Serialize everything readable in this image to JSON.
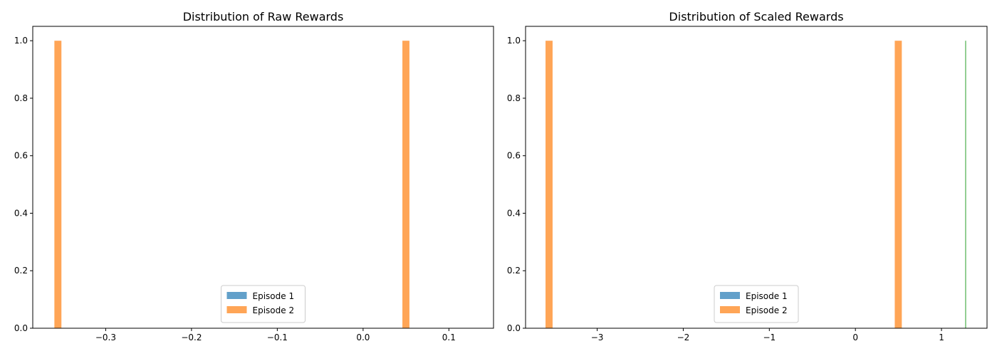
{
  "chart_data": [
    {
      "type": "bar",
      "title": "Distribution of Raw Rewards",
      "xlabel": "",
      "ylabel": "",
      "xlim": [
        -0.385,
        0.152
      ],
      "ylim": [
        0,
        1.05
      ],
      "xticks": [
        -0.3,
        -0.2,
        -0.1,
        0.0,
        0.1
      ],
      "xtick_labels": [
        "−0.3",
        "−0.2",
        "−0.1",
        "0.0",
        "0.1"
      ],
      "yticks": [
        0.0,
        0.2,
        0.4,
        0.6,
        0.8,
        1.0
      ],
      "ytick_labels": [
        "0.0",
        "0.2",
        "0.4",
        "0.6",
        "0.8",
        "1.0"
      ],
      "grid": false,
      "legend_position": "lower center",
      "series": [
        {
          "name": "Episode 1",
          "color": "#1f77b4",
          "alpha": 0.7,
          "bars": []
        },
        {
          "name": "Episode 2",
          "color": "#ff7f0e",
          "alpha": 0.7,
          "bars": [
            {
              "x0": -0.3598,
              "x1": -0.3516,
              "count": 1
            },
            {
              "x0": 0.0458,
              "x1": 0.054,
              "count": 1
            }
          ]
        }
      ]
    },
    {
      "type": "bar",
      "title": "Distribution of Scaled Rewards",
      "xlabel": "",
      "ylabel": "",
      "xlim": [
        -3.832,
        1.529
      ],
      "ylim": [
        0,
        1.05
      ],
      "xticks": [
        -3,
        -2,
        -1,
        0,
        1
      ],
      "xtick_labels": [
        "−3",
        "−2",
        "−1",
        "0",
        "1"
      ],
      "yticks": [
        0.0,
        0.2,
        0.4,
        0.6,
        0.8,
        1.0
      ],
      "ytick_labels": [
        "0.0",
        "0.2",
        "0.4",
        "0.6",
        "0.8",
        "1.0"
      ],
      "grid": false,
      "legend_position": "lower center",
      "series": [
        {
          "name": "Episode 1",
          "color": "#1f77b4",
          "alpha": 0.7,
          "bars": []
        },
        {
          "name": "Episode 2",
          "color": "#ff7f0e",
          "alpha": 0.7,
          "bars": [
            {
              "x0": -3.6,
              "x1": -3.518,
              "count": 1
            },
            {
              "x0": 0.457,
              "x1": 0.539,
              "count": 1
            }
          ]
        },
        {
          "name": "",
          "color": "#2ca02c",
          "alpha": 0.7,
          "bars": [
            {
              "x0": 1.2745,
              "x1": 1.2865,
              "count": 1
            }
          ]
        }
      ]
    }
  ]
}
